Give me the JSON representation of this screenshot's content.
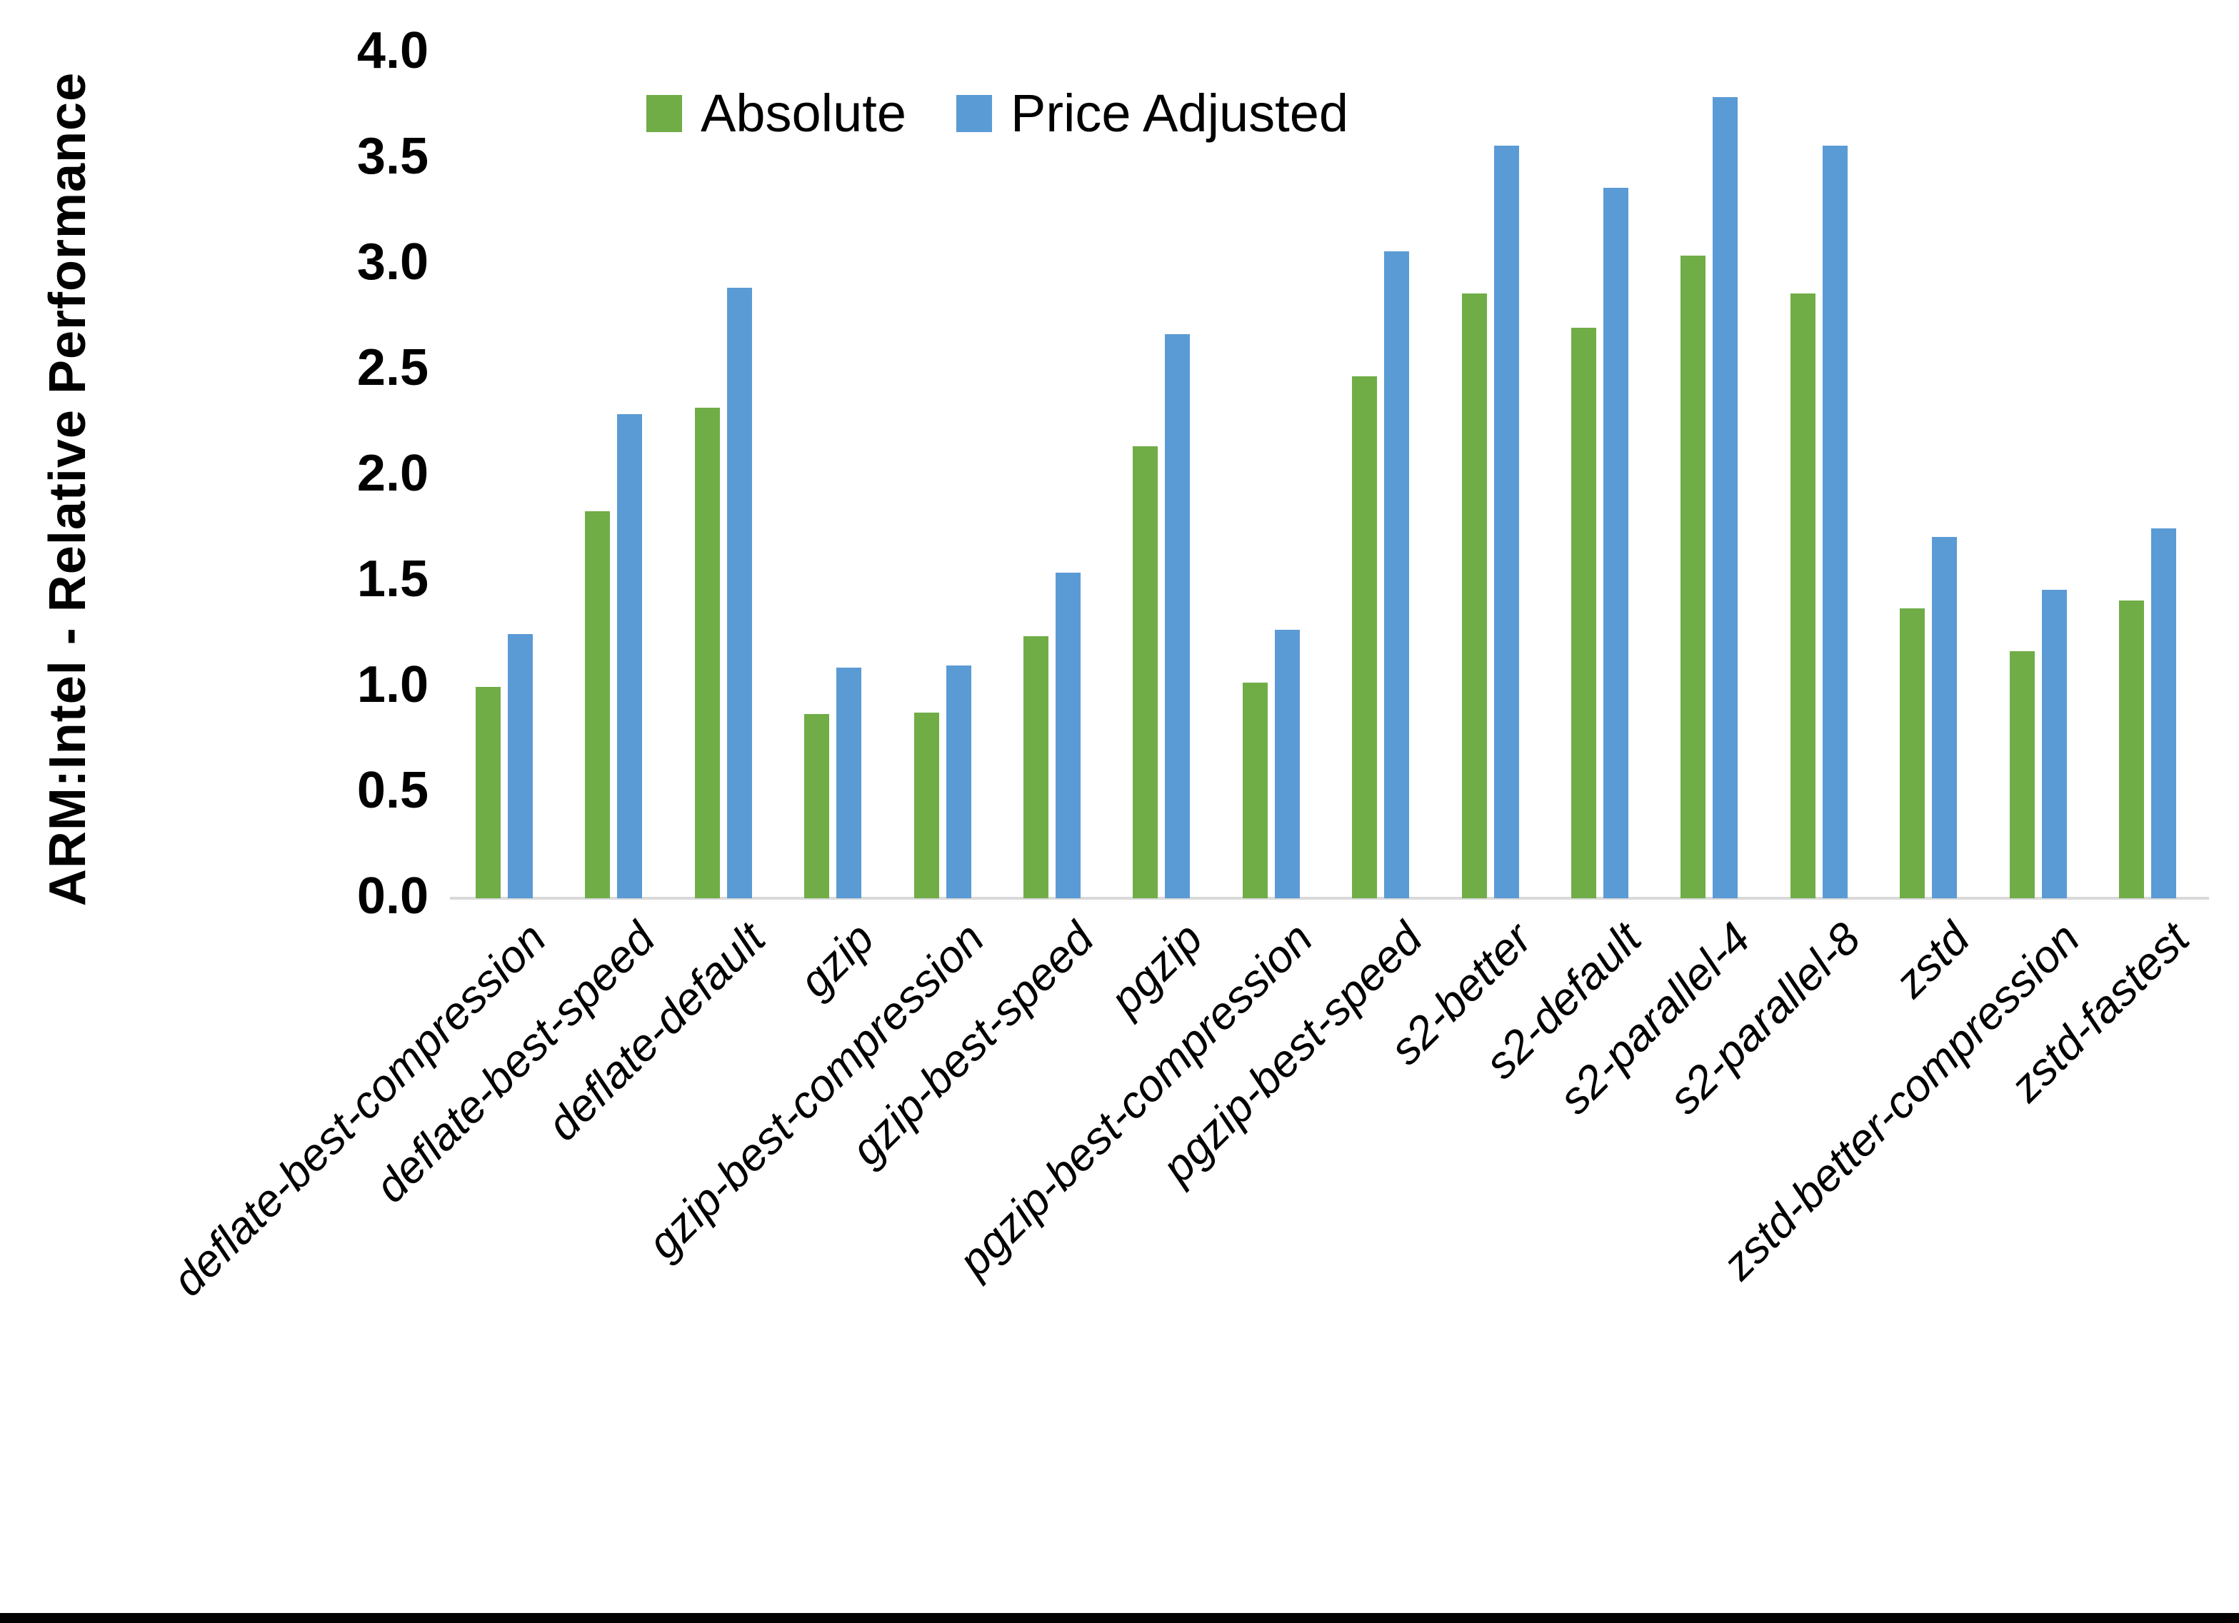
{
  "figure": {
    "background": "#ffffff",
    "bottom_border_color": "#000000"
  },
  "y_axis": {
    "title": "ARM:Intel - Relative Performance"
  },
  "legend": {
    "items": [
      {
        "label": "Absolute",
        "color": "#70AD47"
      },
      {
        "label": "Price Adjusted",
        "color": "#5B9BD5"
      }
    ]
  },
  "chart_data": {
    "type": "bar",
    "title": "",
    "xlabel": "",
    "ylabel": "ARM:Intel - Relative Performance",
    "ylim": [
      0.0,
      4.0
    ],
    "ytick_step": 0.5,
    "ytick_decimals": 1,
    "grid": false,
    "legend_position": "top-center",
    "categories": [
      "deflate-best-compression",
      "deflate-best-speed",
      "deflate-default",
      "gzip",
      "gzip-best-compression",
      "gzip-best-speed",
      "pgzip",
      "pgzip-best-compression",
      "pgzip-best-speed",
      "s2-better",
      "s2-default",
      "s2-parallel-4",
      "s2-parallel-8",
      "zstd",
      "zstd-better-compression",
      "zstd-fastest"
    ],
    "series": [
      {
        "name": "Absolute",
        "color": "#70AD47",
        "values": [
          1.0,
          1.83,
          2.32,
          0.87,
          0.88,
          1.24,
          2.14,
          1.02,
          2.47,
          2.86,
          2.7,
          3.04,
          2.86,
          1.37,
          1.17,
          1.41
        ]
      },
      {
        "name": "Price Adjusted",
        "color": "#5B9BD5",
        "values": [
          1.25,
          2.29,
          2.89,
          1.09,
          1.1,
          1.54,
          2.67,
          1.27,
          3.06,
          3.56,
          3.36,
          3.79,
          3.56,
          1.71,
          1.46,
          1.75
        ]
      }
    ]
  }
}
